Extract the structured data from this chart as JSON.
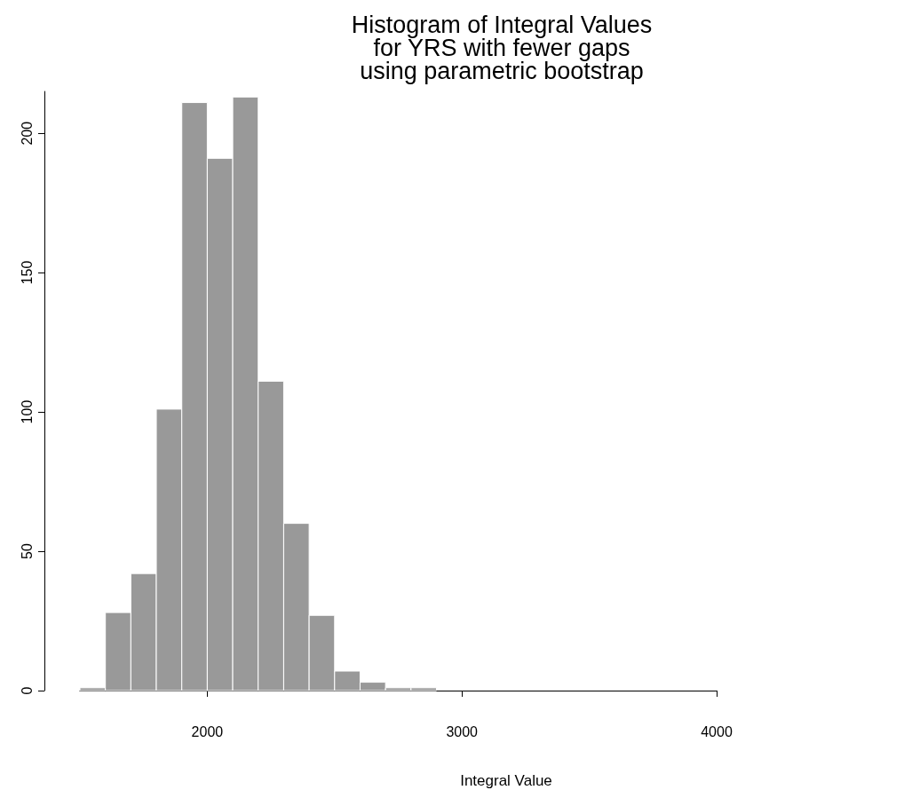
{
  "chart_data": {
    "type": "histogram",
    "title": "Histogram of Integral Values\nfor YRS with fewer gaps\nusing parametric bootstrap",
    "xlabel": "Integral Value",
    "bins": [
      1500,
      1600,
      1700,
      1800,
      1900,
      2000,
      2100,
      2200,
      2300,
      2400,
      2500,
      2600,
      2700,
      2800,
      2900
    ],
    "values": [
      1,
      28,
      42,
      101,
      211,
      191,
      213,
      111,
      60,
      27,
      7,
      3,
      1,
      1
    ],
    "color": "#999999",
    "xlim": [
      1500,
      4000
    ],
    "xticks": [
      2000,
      3000,
      4000
    ],
    "ylim": [
      0,
      215
    ],
    "yticks": [
      0,
      50,
      100,
      150,
      200
    ],
    "grid": false
  }
}
